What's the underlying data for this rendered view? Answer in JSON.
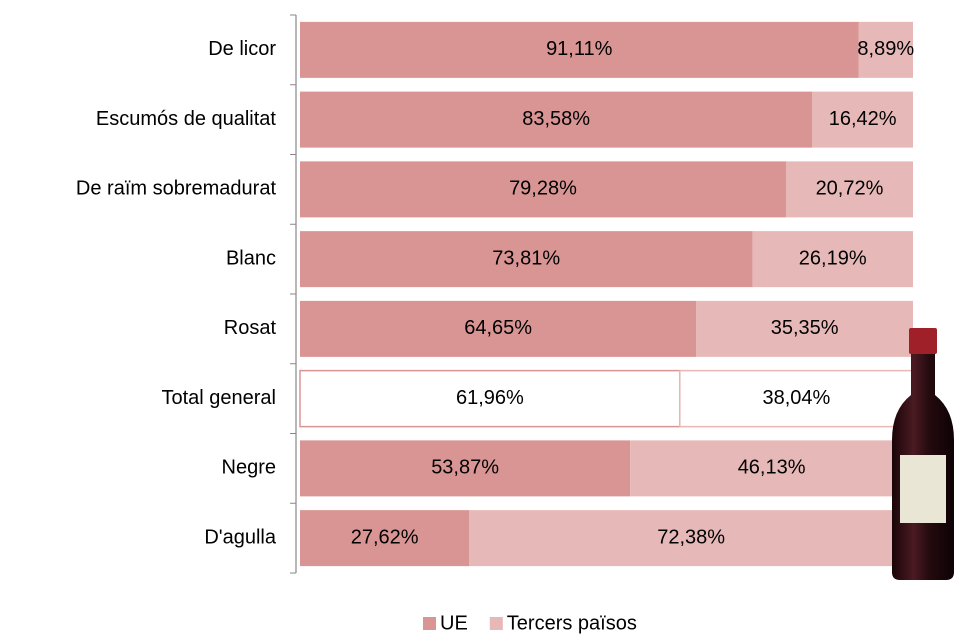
{
  "chart_data": {
    "type": "stacked-bar-horizontal",
    "categories": [
      "De licor",
      "Escumós de qualitat",
      "De raïm sobremadurat",
      "Blanc",
      "Rosat",
      "Total general",
      "Negre",
      "D'agulla"
    ],
    "xlim": [
      0,
      100
    ],
    "series": [
      {
        "name": "UE",
        "color": "#d99594",
        "colors": [
          "#d99594",
          "#d99594",
          "#d99594",
          "#d99594",
          "#d99594",
          "#ffffff",
          "#d99594",
          "#d99594"
        ],
        "values": [
          91.11,
          83.58,
          79.28,
          73.81,
          64.65,
          61.96,
          53.87,
          27.62
        ],
        "value_labels": [
          "91,11%",
          "83,58%",
          "79,28%",
          "73,81%",
          "64,65%",
          "61,96%",
          "53,87%",
          "27,62%"
        ]
      },
      {
        "name": "Tercers països",
        "color": "#e6b9b8",
        "colors": [
          "#e6b9b8",
          "#e6b9b8",
          "#e6b9b8",
          "#e6b9b8",
          "#e6b9b8",
          "#ffffff",
          "#e6b9b8",
          "#e6b9b8"
        ],
        "values": [
          8.89,
          16.42,
          20.72,
          26.19,
          35.35,
          38.04,
          46.13,
          72.38
        ],
        "value_labels": [
          "8,89%",
          "16,42%",
          "20,72%",
          "26,19%",
          "35,35%",
          "38,04%",
          "46,13%",
          "72,38%"
        ]
      }
    ],
    "legend": "bottom"
  }
}
